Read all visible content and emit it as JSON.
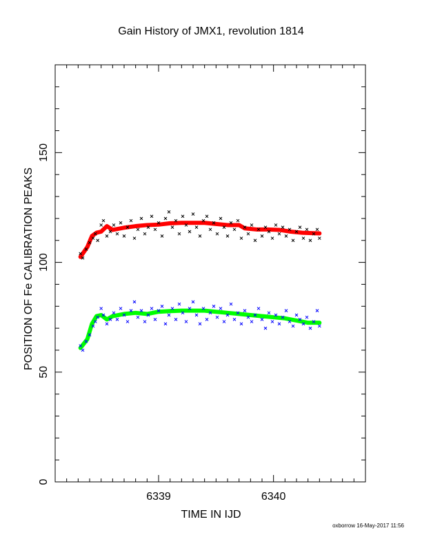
{
  "chart_data": {
    "type": "scatter",
    "title": "Gain History of JMX1, revolution 1814",
    "xlabel": "TIME IN IJD",
    "ylabel": "POSITION OF Fe CALIBRATION PEAKS",
    "xlim": [
      6338.1,
      6340.8
    ],
    "ylim": [
      0,
      190
    ],
    "xticks": [
      6339,
      6340
    ],
    "yticks": [
      0,
      50,
      100,
      150
    ],
    "grid": false,
    "colors": {
      "upper_points": "#000000",
      "upper_fit": "#ff0000",
      "lower_points": "#0000ff",
      "lower_fit": "#00ff00",
      "axis": "#000000"
    },
    "series": [
      {
        "role": "upper_fit",
        "x": [
          6338.32,
          6338.38,
          6338.42,
          6338.46,
          6338.5,
          6338.55,
          6338.6,
          6338.7,
          6338.8,
          6338.9,
          6339.0,
          6339.1,
          6339.2,
          6339.3,
          6339.4,
          6339.5,
          6339.6,
          6339.7,
          6339.75,
          6339.85,
          6339.95,
          6340.05,
          6340.15,
          6340.25,
          6340.35,
          6340.4
        ],
        "y": [
          102.5,
          107,
          112,
          113.5,
          114,
          116.5,
          114.8,
          115.8,
          116.5,
          117,
          117.2,
          117.8,
          118,
          118,
          118,
          117.5,
          117,
          117,
          115.5,
          115,
          115,
          114.8,
          114,
          113.5,
          113.3,
          113.2
        ]
      },
      {
        "role": "lower_fit",
        "x": [
          6338.32,
          6338.38,
          6338.42,
          6338.46,
          6338.5,
          6338.55,
          6338.6,
          6338.7,
          6338.8,
          6338.9,
          6339.0,
          6339.1,
          6339.2,
          6339.3,
          6339.4,
          6339.5,
          6339.6,
          6339.7,
          6339.8,
          6339.9,
          6340.0,
          6340.1,
          6340.2,
          6340.3,
          6340.4
        ],
        "y": [
          61,
          65,
          72,
          75.5,
          76,
          74,
          75.5,
          76.5,
          77,
          76.5,
          77.5,
          77.8,
          78,
          78,
          78,
          77.5,
          77,
          76.5,
          76,
          75.5,
          75,
          74.5,
          73.5,
          72.5,
          72.5
        ]
      },
      {
        "role": "upper_points",
        "x": [
          6338.32,
          6338.34,
          6338.37,
          6338.4,
          6338.43,
          6338.45,
          6338.47,
          6338.5,
          6338.52,
          6338.55,
          6338.58,
          6338.61,
          6338.64,
          6338.67,
          6338.7,
          6338.73,
          6338.76,
          6338.79,
          6338.82,
          6338.85,
          6338.88,
          6338.91,
          6338.94,
          6338.97,
          6339.0,
          6339.03,
          6339.06,
          6339.09,
          6339.12,
          6339.15,
          6339.18,
          6339.21,
          6339.24,
          6339.27,
          6339.3,
          6339.33,
          6339.36,
          6339.39,
          6339.42,
          6339.45,
          6339.48,
          6339.51,
          6339.54,
          6339.57,
          6339.6,
          6339.63,
          6339.66,
          6339.69,
          6339.72,
          6339.75,
          6339.78,
          6339.81,
          6339.84,
          6339.87,
          6339.9,
          6339.93,
          6339.96,
          6339.99,
          6340.02,
          6340.05,
          6340.08,
          6340.11,
          6340.14,
          6340.17,
          6340.2,
          6340.23,
          6340.26,
          6340.29,
          6340.32,
          6340.35,
          6340.38,
          6340.4
        ],
        "y": [
          104,
          102,
          106,
          109,
          111,
          113,
          110,
          117,
          119,
          112,
          114,
          117,
          113,
          118,
          112,
          116,
          119,
          111,
          115,
          120,
          113,
          116,
          121,
          115,
          118,
          112,
          120,
          123,
          116,
          119,
          113,
          121,
          117,
          114,
          122,
          116,
          112,
          119,
          121,
          115,
          118,
          113,
          120,
          116,
          112,
          118,
          115,
          119,
          111,
          116,
          113,
          117,
          110,
          115,
          112,
          116,
          114,
          111,
          117,
          113,
          116,
          112,
          115,
          110,
          114,
          116,
          111,
          115,
          110,
          113,
          115,
          111
        ]
      },
      {
        "role": "lower_points",
        "x": [
          6338.32,
          6338.34,
          6338.37,
          6338.4,
          6338.43,
          6338.45,
          6338.47,
          6338.5,
          6338.52,
          6338.55,
          6338.58,
          6338.61,
          6338.64,
          6338.67,
          6338.7,
          6338.73,
          6338.76,
          6338.79,
          6338.82,
          6338.85,
          6338.88,
          6338.91,
          6338.94,
          6338.97,
          6339.0,
          6339.03,
          6339.06,
          6339.09,
          6339.12,
          6339.15,
          6339.18,
          6339.21,
          6339.24,
          6339.27,
          6339.3,
          6339.33,
          6339.36,
          6339.39,
          6339.42,
          6339.45,
          6339.48,
          6339.51,
          6339.54,
          6339.57,
          6339.6,
          6339.63,
          6339.66,
          6339.69,
          6339.72,
          6339.75,
          6339.78,
          6339.81,
          6339.84,
          6339.87,
          6339.9,
          6339.93,
          6339.96,
          6339.99,
          6340.02,
          6340.05,
          6340.08,
          6340.11,
          6340.14,
          6340.17,
          6340.2,
          6340.23,
          6340.26,
          6340.29,
          6340.32,
          6340.35,
          6340.38,
          6340.4
        ],
        "y": [
          62,
          60,
          64,
          67,
          71,
          73,
          75,
          79,
          76,
          72,
          74,
          77,
          74,
          79,
          76,
          73,
          78,
          82,
          75,
          78,
          73,
          76,
          79,
          74,
          78,
          80,
          72,
          76,
          79,
          74,
          81,
          77,
          73,
          79,
          82,
          76,
          72,
          79,
          74,
          77,
          80,
          75,
          79,
          73,
          76,
          81,
          74,
          77,
          72,
          78,
          75,
          73,
          76,
          79,
          74,
          70,
          77,
          73,
          76,
          72,
          75,
          78,
          73,
          71,
          76,
          74,
          72,
          75,
          70,
          73,
          78,
          71
        ]
      }
    ]
  },
  "footer": "oxborrow 16-May-2017 11:56"
}
